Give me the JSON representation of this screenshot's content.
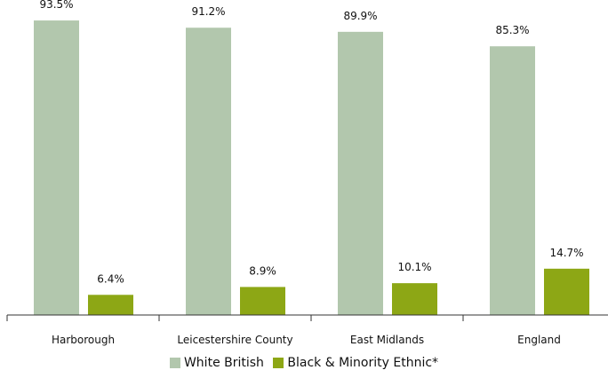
{
  "chart_data": {
    "type": "bar",
    "title": "",
    "categories": [
      "Harborough",
      "Leicestershire County",
      "East Midlands",
      "England"
    ],
    "series": [
      {
        "name": "White British",
        "values": [
          93.5,
          91.2,
          89.9,
          85.3
        ],
        "color": "#b2c7ad"
      },
      {
        "name": "Black & Minority Ethnic*",
        "values": [
          6.4,
          8.9,
          10.1,
          14.7
        ],
        "color": "#8da715"
      }
    ],
    "value_suffix": "%",
    "ylim": [
      0,
      100
    ],
    "grid": false,
    "legend_position": "bottom"
  }
}
